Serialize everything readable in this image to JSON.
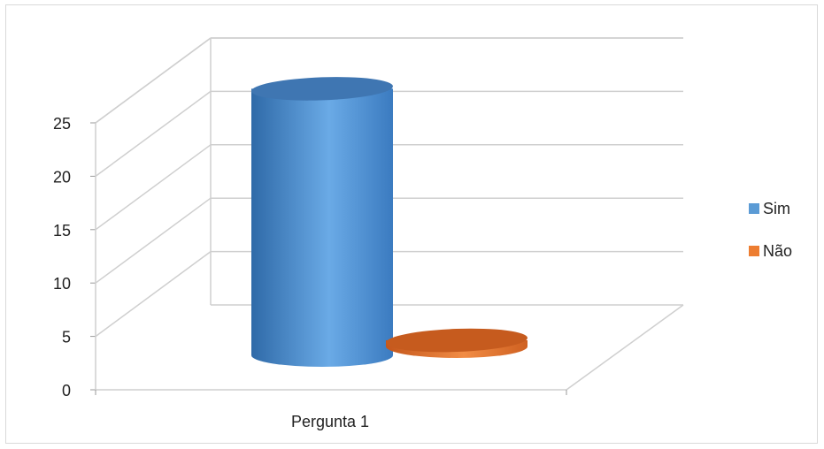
{
  "chart_data": {
    "type": "bar",
    "style": "3d-cylinder",
    "categories": [
      "Pergunta 1"
    ],
    "series": [
      {
        "name": "Sim",
        "values": [
          26
        ],
        "color": "#5b9bd5"
      },
      {
        "name": "Não",
        "values": [
          0.6
        ],
        "color": "#ed7d31"
      }
    ],
    "ylim": [
      0,
      25
    ],
    "yticks": [
      "0",
      "5",
      "10",
      "15",
      "20",
      "25"
    ],
    "grid": true,
    "legend": "right"
  }
}
